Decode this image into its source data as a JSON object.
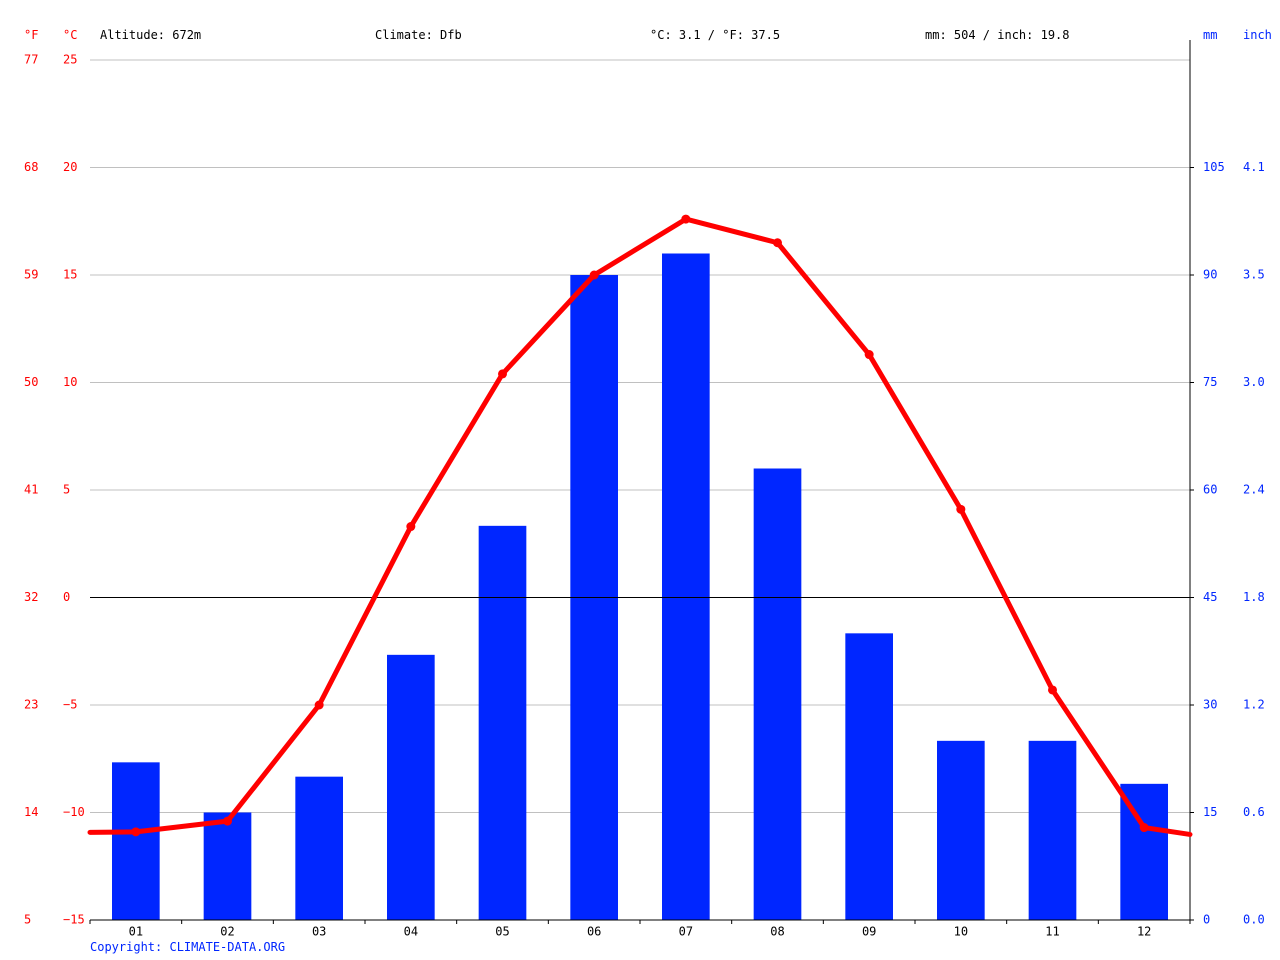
{
  "header": {
    "unit_f": "°F",
    "unit_c": "°C",
    "altitude": "Altitude: 672m",
    "climate": "Climate: Dfb",
    "temp_avg": "°C: 3.1 / °F: 37.5",
    "precip_total": "mm: 504 / inch: 19.8",
    "unit_mm": "mm",
    "unit_inch": "inch"
  },
  "copyright": "Copyright: CLIMATE-DATA.ORG",
  "colors": {
    "temperature": "#ff0000",
    "precipitation": "#0026ff",
    "grid": "#c0c0c0",
    "zero_line": "#000000",
    "axis": "#000000"
  },
  "chart_data": {
    "type": "bar",
    "categories": [
      "01",
      "02",
      "03",
      "04",
      "05",
      "06",
      "07",
      "08",
      "09",
      "10",
      "11",
      "12"
    ],
    "series": [
      {
        "kind": "bar",
        "axis": "mm",
        "values": [
          22,
          15,
          20,
          37,
          55,
          90,
          93,
          63,
          40,
          25,
          25,
          19
        ]
      },
      {
        "kind": "line",
        "axis": "celsius",
        "values": [
          -10.9,
          -10.4,
          -5.0,
          3.3,
          10.4,
          15.0,
          17.6,
          16.5,
          11.3,
          4.1,
          -4.3,
          -10.7
        ]
      }
    ],
    "ylim_celsius": [
      -15,
      25
    ],
    "ylim_mm": [
      0,
      120
    ],
    "left_ticks_f": [
      "77",
      "68",
      "59",
      "50",
      "41",
      "32",
      "23",
      "14",
      "5"
    ],
    "left_ticks_c": [
      "25",
      "20",
      "15",
      "10",
      "5",
      "0",
      "−5",
      "−10",
      "−15"
    ],
    "right_ticks_mm": [
      "105",
      "90",
      "75",
      "60",
      "45",
      "30",
      "15",
      "0"
    ],
    "right_ticks_inch": [
      "4.1",
      "3.5",
      "3.0",
      "2.4",
      "1.8",
      "1.2",
      "0.6",
      "0.0"
    ],
    "grid": true
  }
}
